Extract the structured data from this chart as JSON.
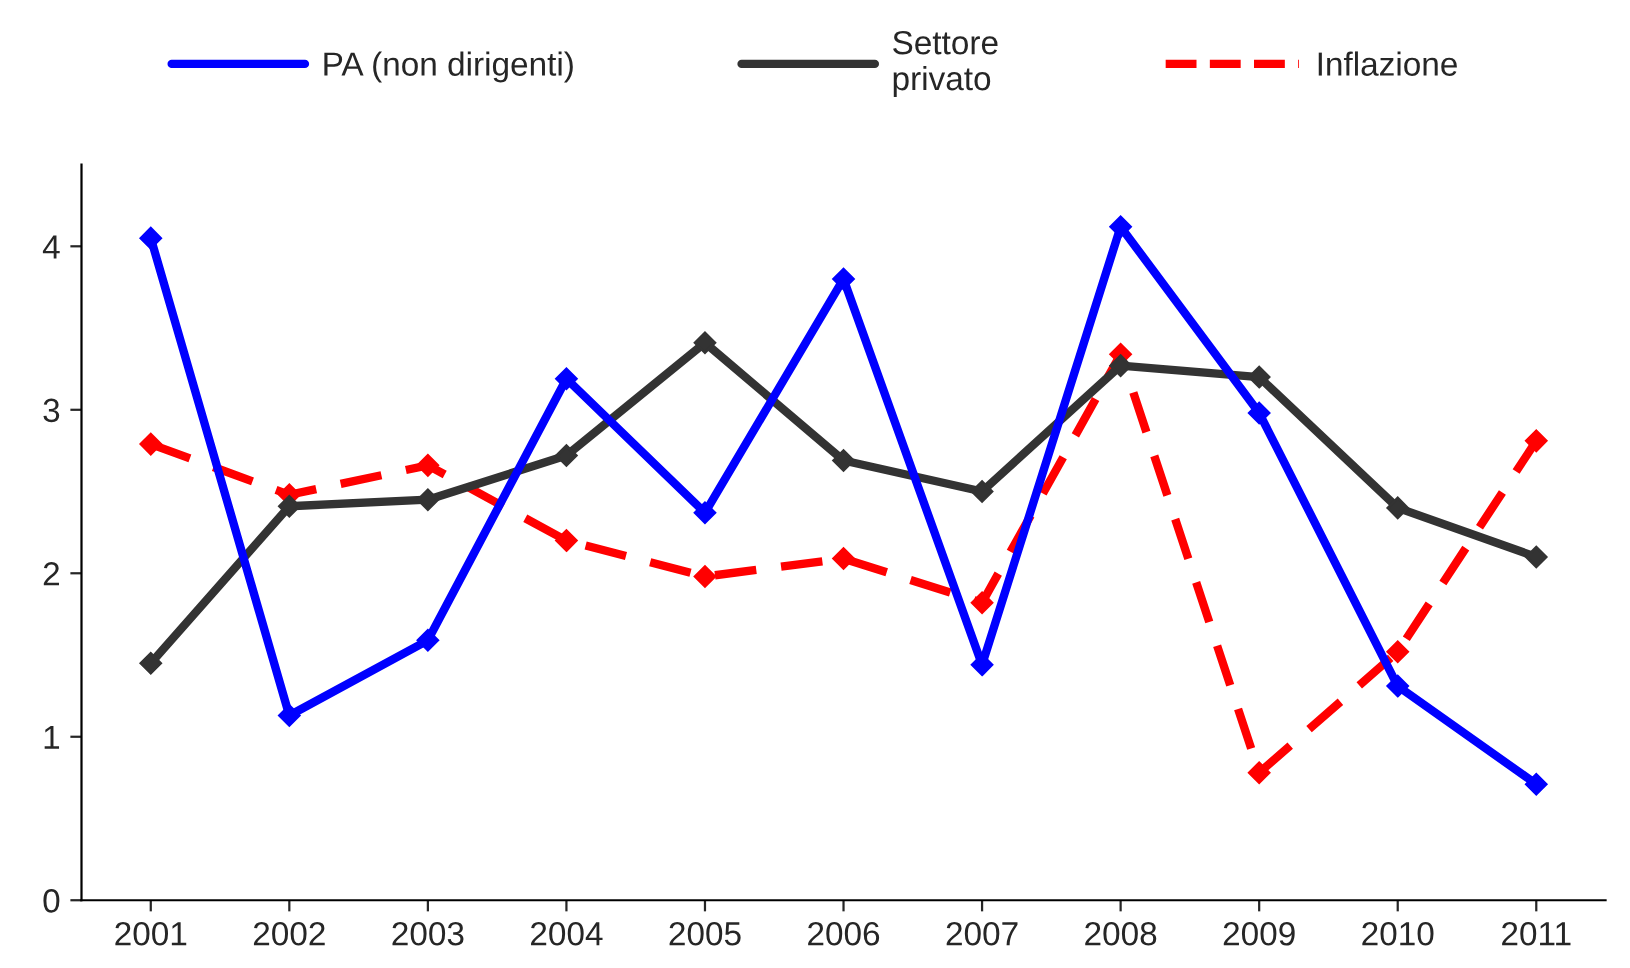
{
  "chart_data": {
    "type": "line",
    "categories": [
      "2001",
      "2002",
      "2003",
      "2004",
      "2005",
      "2006",
      "2007",
      "2008",
      "2009",
      "2010",
      "2011"
    ],
    "series": [
      {
        "name": "PA (non dirigenti)",
        "color": "#0000ff",
        "line_style": "solid",
        "values": [
          4.05,
          1.13,
          1.59,
          3.19,
          2.37,
          3.8,
          1.44,
          4.12,
          2.98,
          1.31,
          0.71
        ]
      },
      {
        "name": "Settore\nprivato",
        "color": "#333333",
        "line_style": "solid",
        "values": [
          1.45,
          2.41,
          2.45,
          2.72,
          3.41,
          2.69,
          2.5,
          3.27,
          3.2,
          2.4,
          2.1
        ]
      },
      {
        "name": "Inflazione",
        "color": "#ff0000",
        "line_style": "dashed",
        "values": [
          2.79,
          2.48,
          2.66,
          2.2,
          1.98,
          2.09,
          1.82,
          3.34,
          0.78,
          1.52,
          2.81
        ]
      }
    ],
    "ylim": [
      0,
      4.5
    ],
    "yticks": [
      0,
      1,
      2,
      3,
      4
    ],
    "marker": "diamond",
    "legend": "top",
    "grid": false
  }
}
